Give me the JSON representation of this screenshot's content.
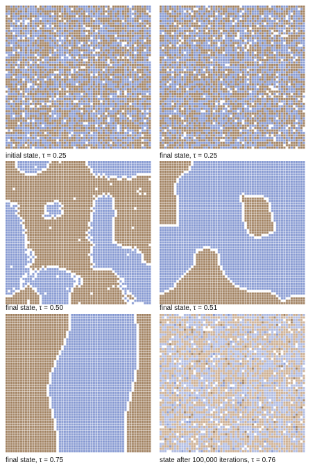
{
  "colors": {
    "brown": "#9c7a58",
    "blue": "#7f93cf",
    "empty": "#ffffff",
    "light_brown": "#c9a98a",
    "light_blue": "#a9b6e0"
  },
  "panels": [
    {
      "caption": "initial state, τ = 0.25",
      "pattern": "random-mix"
    },
    {
      "caption": "final state, τ = 0.25",
      "pattern": "random-mix"
    },
    {
      "caption": "final state, τ = 0.50",
      "pattern": "clustered-patches"
    },
    {
      "caption": "final state, τ = 0.51",
      "pattern": "large-regions"
    },
    {
      "caption": "final state, τ = 0.75",
      "pattern": "two-bands"
    },
    {
      "caption": "state after 100,000 iterations, τ = 0.76",
      "pattern": "pale-random"
    }
  ]
}
